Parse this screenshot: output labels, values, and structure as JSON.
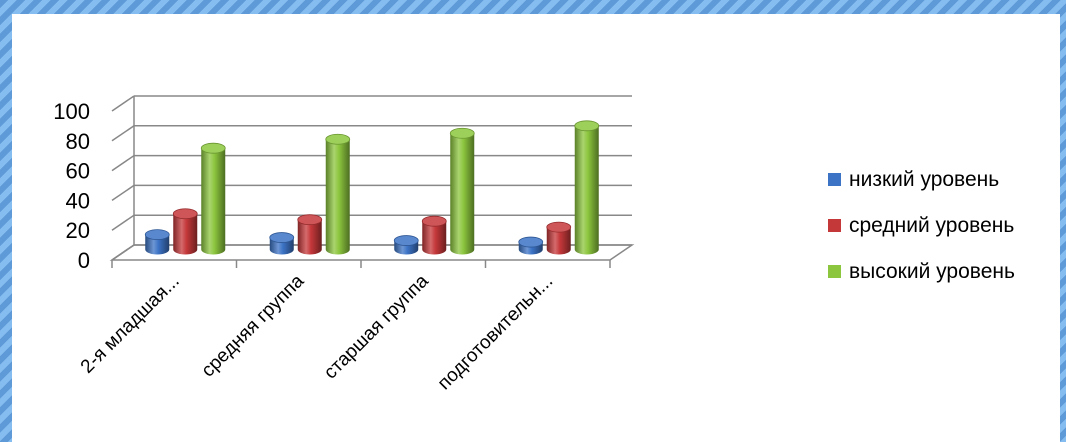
{
  "colors": {
    "series_low": "#3c73c5",
    "series_mid": "#c5383a",
    "series_high": "#8cc63e",
    "grid": "#888888"
  },
  "chart_data": {
    "type": "bar",
    "categories": [
      "2-я младшая...",
      "средняя группа",
      "старшая группа",
      "подготовительн..."
    ],
    "series": [
      {
        "name": "низкий уровень",
        "values": [
          10,
          8,
          6,
          5
        ]
      },
      {
        "name": "средний уровень",
        "values": [
          24,
          20,
          19,
          15
        ]
      },
      {
        "name": "высокий уровень",
        "values": [
          68,
          74,
          78,
          83
        ]
      }
    ],
    "ylim": [
      0,
      100
    ],
    "yticks": [
      "0",
      "20",
      "40",
      "60",
      "80",
      "100"
    ],
    "grid": true,
    "legend": "right",
    "style": "3d cylinders"
  }
}
